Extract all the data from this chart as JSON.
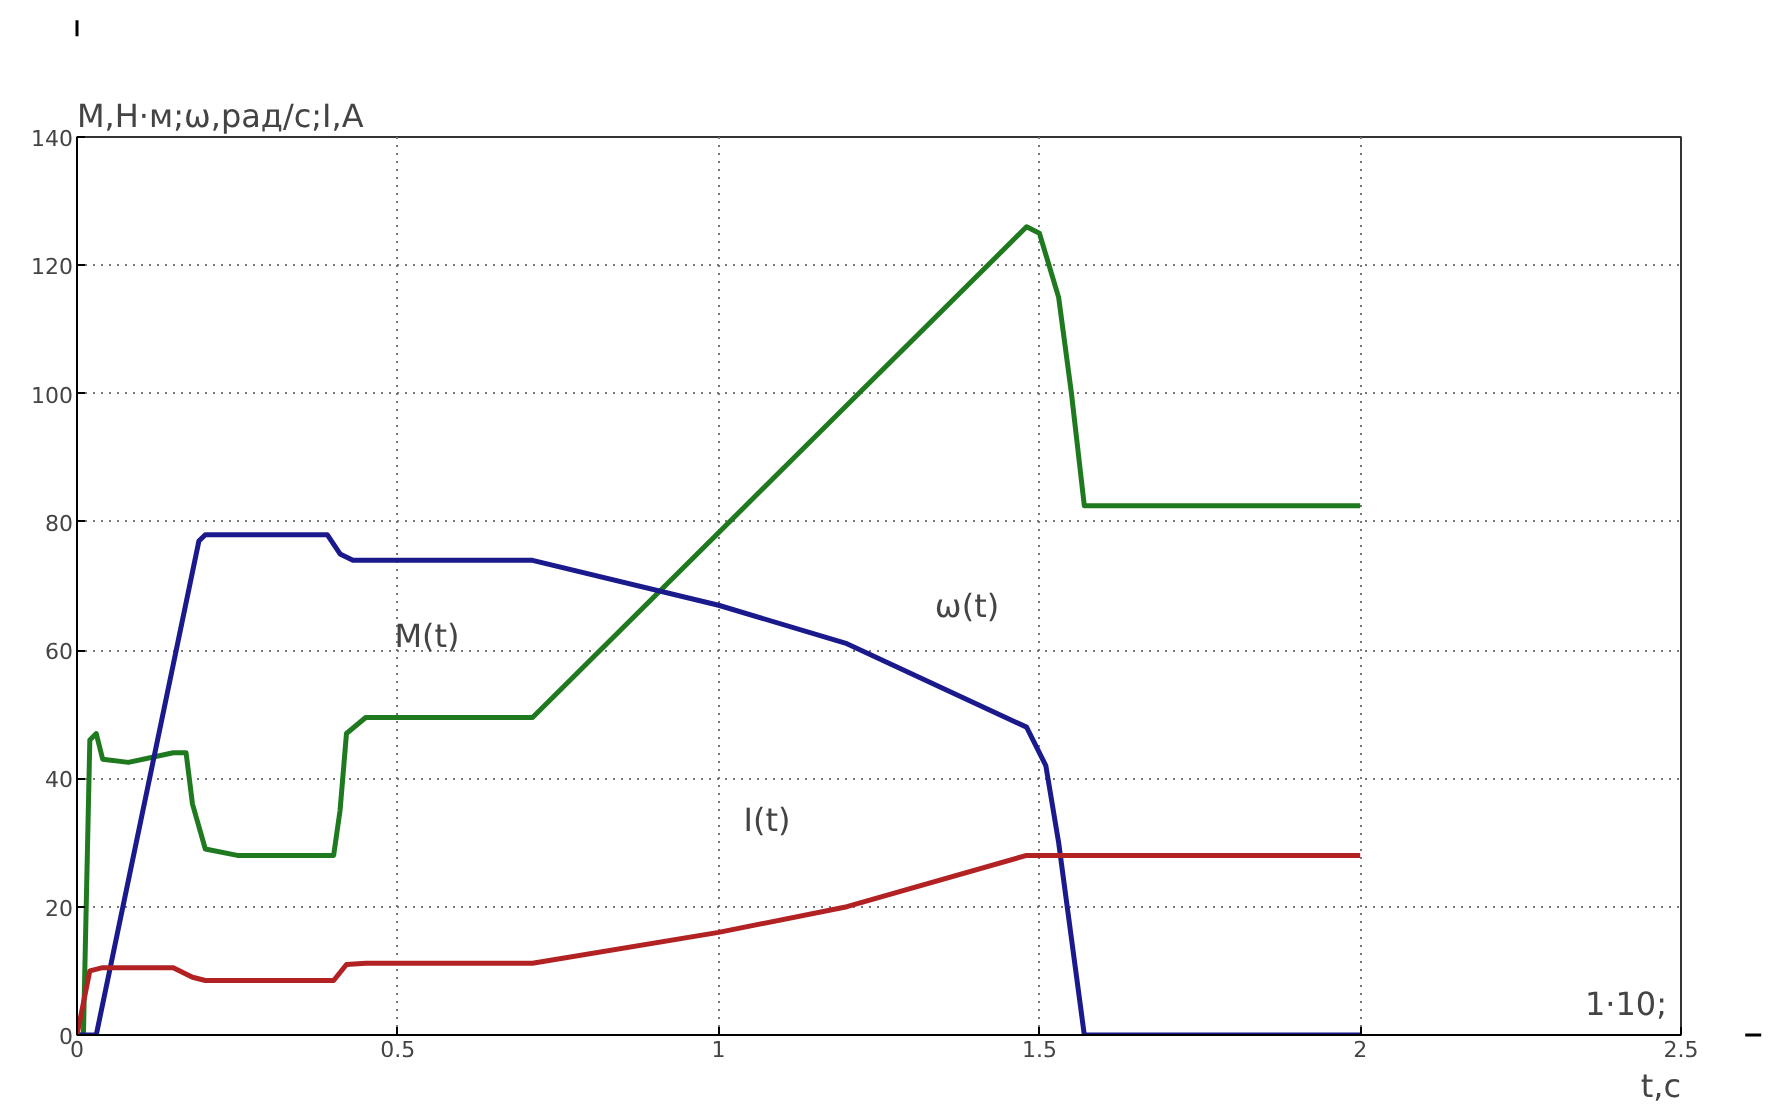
{
  "chart_data": {
    "type": "line",
    "xlabel": "t,c",
    "ylabel": "М,Н·м;ω,рад/с;I,А",
    "xlim": [
      0,
      2.5
    ],
    "ylim": [
      0,
      140
    ],
    "xticks": [
      0,
      0.5,
      1,
      1.5,
      2,
      2.5
    ],
    "yticks": [
      0,
      20,
      40,
      60,
      80,
      100,
      120,
      140
    ],
    "grid": true,
    "line_style": "solid",
    "series": [
      {
        "color": "#1f7a1f",
        "x": [
          0,
          0.01,
          0.02,
          0.03,
          0.04,
          0.08,
          0.15,
          0.17,
          0.18,
          0.2,
          0.25,
          0.4,
          0.41,
          0.42,
          0.45,
          0.71,
          1.48,
          1.5,
          1.53,
          1.55,
          1.57,
          2.0
        ],
        "values": [
          0,
          0,
          46,
          47,
          43,
          42.5,
          44,
          44,
          36,
          29,
          28,
          28,
          35,
          47,
          49.5,
          49.5,
          126,
          125,
          115,
          100,
          82.5,
          82.5
        ]
      },
      {
        "color": "#1a1a8c",
        "x": [
          0,
          0.03,
          0.19,
          0.2,
          0.39,
          0.41,
          0.43,
          0.71,
          1.0,
          1.2,
          1.48,
          1.51,
          1.53,
          1.55,
          1.57,
          2.0
        ],
        "values": [
          0,
          0,
          77,
          78,
          78,
          75,
          74,
          74,
          67,
          61,
          48,
          42,
          30,
          15,
          0,
          0
        ]
      },
      {
        "color": "#b22222",
        "x": [
          0,
          0.02,
          0.04,
          0.15,
          0.18,
          0.2,
          0.4,
          0.42,
          0.45,
          0.71,
          1.0,
          1.2,
          1.48,
          2.0
        ],
        "values": [
          0,
          10,
          10.5,
          10.5,
          9,
          8.5,
          8.5,
          11,
          11.2,
          11.2,
          16,
          20,
          28,
          28
        ]
      }
    ],
    "annotations": [
      "M(t)",
      "ω(t)",
      "I(t)",
      "1·10;"
    ]
  }
}
